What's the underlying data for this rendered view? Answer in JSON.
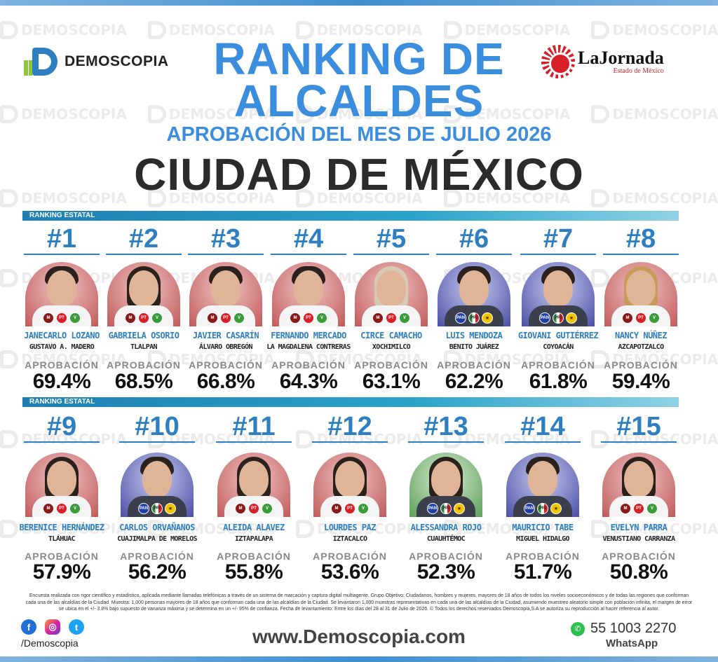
{
  "header": {
    "brand_left": "DEMOSCOPIA",
    "brand_right": "LaJornada",
    "brand_right_sub": "Estado de México",
    "title_line1": "RANKING DE",
    "title_line2": "ALCALDES",
    "subtitle": "APROBACIÓN DEL MES DE JULIO 2026",
    "city": "CIUDAD DE MÉXICO",
    "ranking_label": "RANKING ESTATAL",
    "watermark_text": "DEMOSCOPIA"
  },
  "colors": {
    "title_blue": "#3b8ddd",
    "rank_blue": "#2d7fc1",
    "strip_teal": "#2ba3c9",
    "morena_bg": "#c05a5a",
    "pan_bg": "#4a4fa6"
  },
  "approval_label": "APROBACIÓN",
  "row1": [
    {
      "rank": "#1",
      "name": "JANECARLO LOZANO",
      "town": "GUSTAVO A. MADERO",
      "approval": "69.4%",
      "parties": [
        "morena-logo-icon",
        "pt-logo-icon",
        "verde-logo-icon"
      ]
    },
    {
      "rank": "#2",
      "name": "GABRIELA OSORIO",
      "town": "TLALPAN",
      "approval": "68.5%",
      "parties": [
        "morena-logo-icon",
        "pt-logo-icon",
        "verde-logo-icon"
      ]
    },
    {
      "rank": "#3",
      "name": "JAVIER CASARÍN",
      "town": "ÁLVARO OBREGÓN",
      "approval": "66.8%",
      "parties": [
        "morena-logo-icon",
        "pt-logo-icon",
        "verde-logo-icon"
      ]
    },
    {
      "rank": "#4",
      "name": "FERNANDO MERCADO",
      "town": "LA MAGDALENA CONTRERAS",
      "approval": "64.3%",
      "parties": [
        "morena-logo-icon",
        "pt-logo-icon",
        "verde-logo-icon"
      ]
    },
    {
      "rank": "#5",
      "name": "CIRCE CAMACHO",
      "town": "XOCHIMILCO",
      "approval": "63.1%",
      "parties": [
        "morena-logo-icon",
        "pt-logo-icon",
        "verde-logo-icon"
      ]
    },
    {
      "rank": "#6",
      "name": "LUIS MENDOZA",
      "town": "BENITO JUÁREZ",
      "approval": "62.2%",
      "parties": [
        "pan-logo-icon",
        "pri-logo-icon",
        "prd-logo-icon"
      ]
    },
    {
      "rank": "#7",
      "name": "GIOVANI GUTIÉRREZ",
      "town": "COYOACÁN",
      "approval": "61.8%",
      "parties": [
        "pan-logo-icon",
        "pri-logo-icon",
        "prd-logo-icon"
      ]
    },
    {
      "rank": "#8",
      "name": "NANCY NÚÑEZ",
      "town": "AZCAPOTZALCO",
      "approval": "59.4%",
      "parties": [
        "morena-logo-icon",
        "pt-logo-icon",
        "verde-logo-icon"
      ]
    }
  ],
  "row2": [
    {
      "rank": "#9",
      "name": "BERENICE HERNÁNDEZ",
      "town": "TLÁHUAC",
      "approval": "57.9%",
      "parties": [
        "morena-logo-icon",
        "pt-logo-icon",
        "verde-logo-icon"
      ]
    },
    {
      "rank": "#10",
      "name": "CARLOS ORVAÑANOS",
      "town": "CUAJIMALPA DE MORELOS",
      "approval": "56.2%",
      "parties": [
        "pan-logo-icon",
        "pri-logo-icon",
        "prd-logo-icon"
      ]
    },
    {
      "rank": "#11",
      "name": "ALEIDA ALAVEZ",
      "town": "IZTAPALAPA",
      "approval": "55.8%",
      "parties": [
        "morena-logo-icon",
        "pt-logo-icon",
        "verde-logo-icon"
      ]
    },
    {
      "rank": "#12",
      "name": "LOURDES PAZ",
      "town": "IZTACALCO",
      "approval": "53.6%",
      "parties": [
        "morena-logo-icon",
        "pt-logo-icon",
        "verde-logo-icon"
      ]
    },
    {
      "rank": "#13",
      "name": "ALESSANDRA ROJO",
      "town": "CUAUHTÉMOC",
      "approval": "52.3%",
      "parties": [
        "pan-logo-icon",
        "pri-logo-icon",
        "prd-logo-icon"
      ]
    },
    {
      "rank": "#14",
      "name": "MAURICIO TABE",
      "town": "MIGUEL HIDALGO",
      "approval": "51.7%",
      "parties": [
        "pan-logo-icon",
        "pri-logo-icon",
        "prd-logo-icon"
      ]
    },
    {
      "rank": "#15",
      "name": "EVELYN PARRA",
      "town": "VENUSTIANO CARRANZA",
      "approval": "50.8%",
      "parties": [
        "morena-logo-icon",
        "pt-logo-icon",
        "verde-logo-icon"
      ]
    }
  ],
  "footer": {
    "disclaimer": "Encuesta realizada con rigor científico y estadístico, aplicada mediante llamadas telefónicas a través de un sistema de marcación y captura digital multiagente. Grupo Objetivo: Ciudadanos, hombres y mujeres, mayores de 18 años de todos los niveles socioeconómicos y de todas las regiones que conforman cada una de las alcaldías de la Ciudad. Muestra: 1,000 personas mayores de 18 años que conforman cada una de las alcaldías de la Ciudad. Se levantaron 1,000 muestras representativas en cada una de las alcaldías de la Ciudad, asumiendo muestreo aleatorio simple con población infinita, el margen de error se ubica en el +/- 3.8% bajo supuesto de varianza máxima y se determina en un +/- 95% de confianza. Fecha de levantamiento: Entre los días del 28 al 31 de Julio de 2026. © Todos los derechos reservados Demoscopia,S.A se autoriza su reproducción al hacer referencia al autor.",
    "handle": "/Demoscopia",
    "website": "www.Demoscopia.com",
    "phone": "55 1003 2270",
    "whatsapp_label": "WhatsApp",
    "social_icons": [
      "facebook-icon",
      "instagram-icon",
      "twitter-icon"
    ]
  }
}
